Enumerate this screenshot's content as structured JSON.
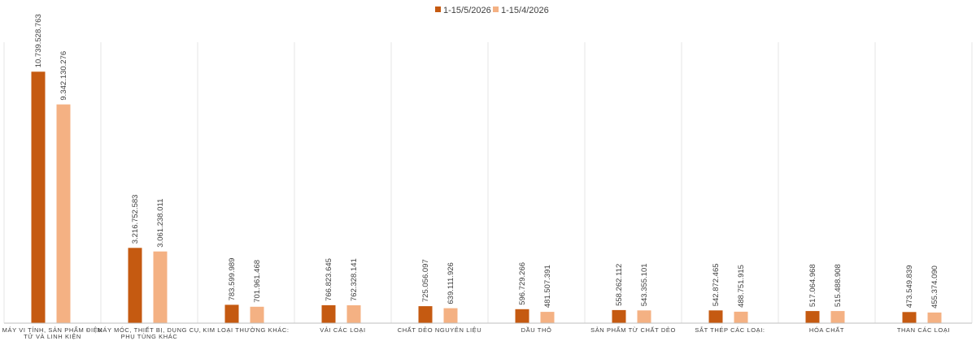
{
  "colors": {
    "series_a": "#c55a11",
    "series_b": "#f4b183",
    "gridline": "#e6e6e6",
    "axis": "#bfbfbf"
  },
  "chart_data": {
    "type": "bar",
    "categories": [
      [
        "MÁY VI TÍNH, SẢN PHẨM ĐIỆN",
        "TỬ VÀ LINH KIỆN"
      ],
      [
        "MÁY MÓC, THIẾT BỊ, DỤNG CỤ,",
        "PHỤ TÙNG KHÁC"
      ],
      [
        "KIM LOẠI THƯỜNG KHÁC:"
      ],
      [
        "VẢI CÁC LOẠI"
      ],
      [
        "CHẤT DẺO NGUYÊN LIỆU"
      ],
      [
        "DẦU THÔ"
      ],
      [
        "SẢN PHẨM TỪ CHẤT DẺO"
      ],
      [
        "SẮT THÉP CÁC LOẠI:"
      ],
      [
        "HÓA CHẤT"
      ],
      [
        "THAN CÁC LOẠI"
      ]
    ],
    "series": [
      {
        "name": "1-15/5/2026",
        "values": [
          10739528763,
          3216752583,
          783599989,
          766823645,
          725056097,
          596729266,
          558262112,
          542872465,
          517064968,
          473549839
        ],
        "labels": [
          "10.739.528.763",
          "3.216.752.583",
          "783.599.989",
          "766.823.645",
          "725.056.097",
          "596.729.266",
          "558.262.112",
          "542.872.465",
          "517.064.968",
          "473.549.839"
        ]
      },
      {
        "name": "1-15/4/2026",
        "values": [
          9342130276,
          3061238011,
          701961468,
          762328141,
          639111926,
          481507391,
          543355101,
          488751915,
          515488908,
          455374090
        ],
        "labels": [
          "9.342.130.276",
          "3.061.238.011",
          "701.961.468",
          "762.328.141",
          "639.111.926",
          "481.507.391",
          "543.355.101",
          "488.751.915",
          "515.488.908",
          "455.374.090"
        ]
      }
    ],
    "title": "",
    "xlabel": "",
    "ylabel": "",
    "ylim": [
      0,
      12000000000
    ],
    "legend_position": "top-center",
    "grid": "vertical-category-separators"
  }
}
